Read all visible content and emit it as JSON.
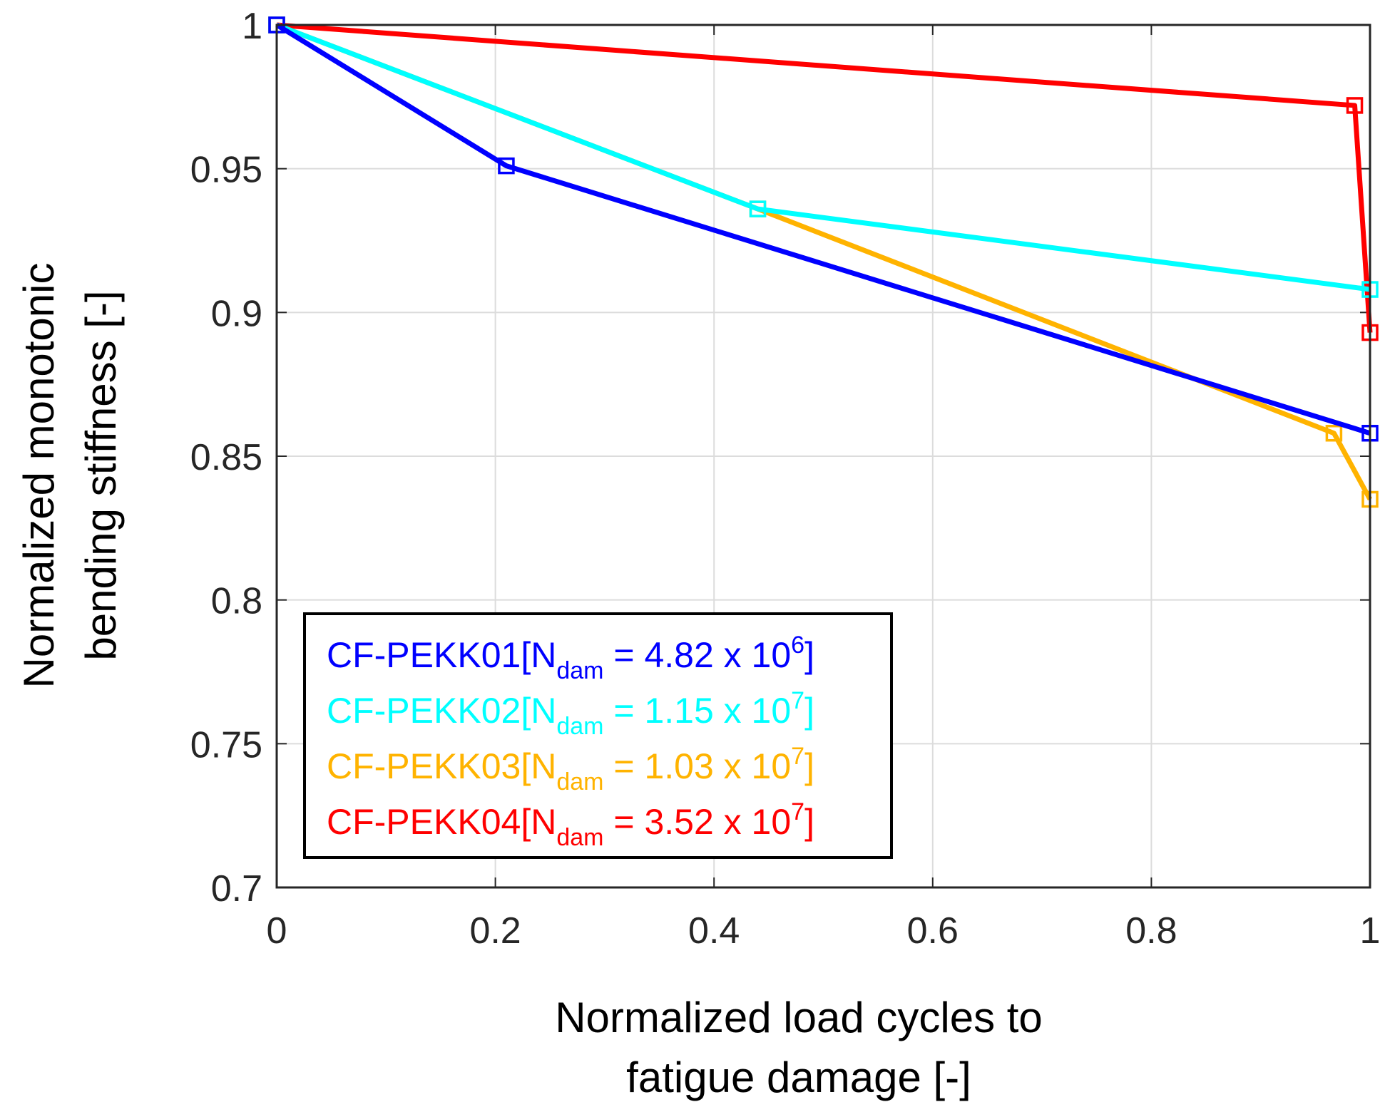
{
  "chart_data": {
    "type": "line",
    "title": "",
    "xlabel": [
      "Normalized load cycles to",
      "fatigue damage [-]"
    ],
    "ylabel": [
      "Normalized monotonic",
      "bending stiffness [-]"
    ],
    "xlim": [
      0,
      1
    ],
    "ylim": [
      0.7,
      1
    ],
    "grid": true,
    "x_ticks": [
      0,
      0.2,
      0.4,
      0.6,
      0.8,
      1
    ],
    "x_tick_labels": [
      "0",
      "0.2",
      "0.4",
      "0.6",
      "0.8",
      "1"
    ],
    "y_ticks": [
      0.7,
      0.75,
      0.8,
      0.85,
      0.9,
      0.95,
      1
    ],
    "y_tick_labels": [
      "0.7",
      "0.75",
      "0.8",
      "0.85",
      "0.9",
      "0.95",
      "1"
    ],
    "legend_position": "bottom-left",
    "marker": "square",
    "series": [
      {
        "name": "CF-PEKK01",
        "legend_prefix": "CF-PEKK01[N",
        "legend_sub": "dam",
        "legend_mid": " = 4.82 x 10",
        "legend_sup": "6",
        "legend_suffix": "]",
        "color": "#0000ff",
        "x": [
          0,
          0.21,
          1
        ],
        "y": [
          1.0,
          0.951,
          0.858
        ]
      },
      {
        "name": "CF-PEKK02",
        "legend_prefix": "CF-PEKK02[N",
        "legend_sub": "dam",
        "legend_mid": " = 1.15 x 10",
        "legend_sup": "7",
        "legend_suffix": "]",
        "color": "#00ffff",
        "x": [
          0,
          0.44,
          1
        ],
        "y": [
          1.0,
          0.936,
          0.908
        ]
      },
      {
        "name": "CF-PEKK03",
        "legend_prefix": "CF-PEKK03[N",
        "legend_sub": "dam",
        "legend_mid": " = 1.03 x 10",
        "legend_sup": "7",
        "legend_suffix": "]",
        "color": "#ffb300",
        "x": [
          0,
          0.44,
          0.967,
          1
        ],
        "y": [
          1.0,
          0.936,
          0.858,
          0.835
        ]
      },
      {
        "name": "CF-PEKK04",
        "legend_prefix": "CF-PEKK04[N",
        "legend_sub": "dam",
        "legend_mid": " = 3.52 x 10",
        "legend_sup": "7",
        "legend_suffix": "]",
        "color": "#ff0000",
        "x": [
          0,
          0.986,
          1
        ],
        "y": [
          1.0,
          0.972,
          0.893
        ]
      }
    ]
  }
}
